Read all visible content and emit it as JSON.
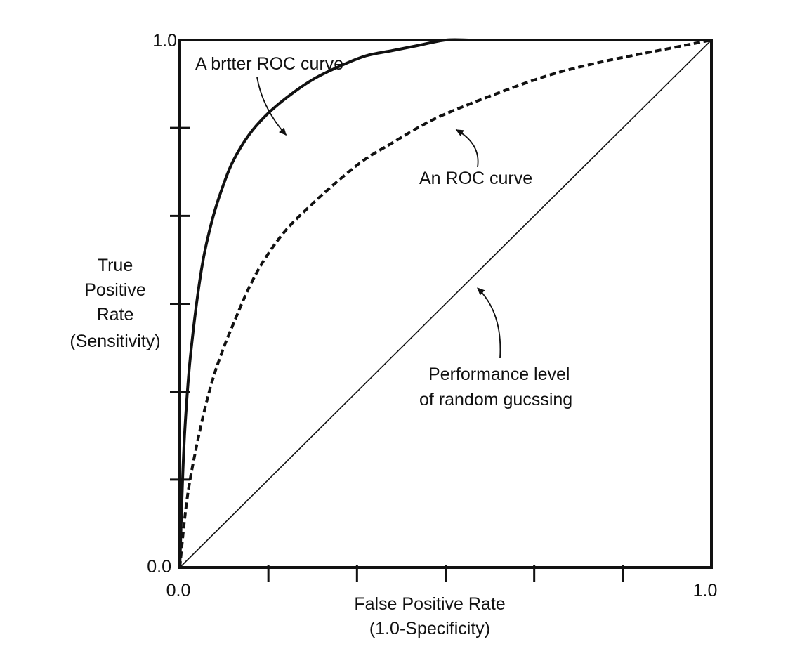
{
  "chart_data": {
    "type": "line",
    "xlabel": [
      "False Positive Rate",
      "(1.0-Specificity)"
    ],
    "ylabel": [
      "True",
      "Positive",
      "Rate",
      "(Sensitivity)"
    ],
    "xlim": [
      0,
      1
    ],
    "ylim": [
      0,
      1
    ],
    "x_tick_labels": [
      "0.0",
      "1.0"
    ],
    "y_tick_labels": [
      "0.0",
      "1.0"
    ],
    "grid": false,
    "series": [
      {
        "id": "better",
        "style": "solid-thick",
        "x": [
          0,
          0.005,
          0.01,
          0.02,
          0.04,
          0.06,
          0.08,
          0.1,
          0.13,
          0.16,
          0.2,
          0.25,
          0.3,
          0.35,
          0.4,
          0.45,
          0.5,
          0.55,
          0.6,
          0.65,
          0.7,
          0.8,
          0.9,
          1.0
        ],
        "y": [
          0,
          0.16,
          0.27,
          0.4,
          0.56,
          0.655,
          0.72,
          0.77,
          0.82,
          0.855,
          0.89,
          0.925,
          0.95,
          0.97,
          0.98,
          0.99,
          1.0,
          1.0,
          1.0,
          1.0,
          1.0,
          1.0,
          1.0,
          1.0
        ]
      },
      {
        "id": "roc",
        "style": "dashed",
        "x": [
          0,
          0.01,
          0.02,
          0.04,
          0.06,
          0.08,
          0.1,
          0.13,
          0.16,
          0.2,
          0.25,
          0.3,
          0.35,
          0.4,
          0.45,
          0.5,
          0.6,
          0.7,
          0.8,
          0.9,
          1.0
        ],
        "y": [
          0,
          0.1,
          0.17,
          0.27,
          0.35,
          0.41,
          0.46,
          0.53,
          0.585,
          0.64,
          0.69,
          0.735,
          0.775,
          0.805,
          0.835,
          0.86,
          0.9,
          0.935,
          0.96,
          0.98,
          1.0
        ]
      },
      {
        "id": "random",
        "style": "solid-thin",
        "x": [
          0,
          1
        ],
        "y": [
          0,
          1
        ]
      }
    ],
    "annotations": [
      {
        "id": "better",
        "text": "A brtter ROC curve",
        "x": 0.03,
        "y": 0.955,
        "arrow_to": [
          0.2,
          0.82
        ]
      },
      {
        "id": "roc",
        "text": "An ROC curve",
        "x": 0.45,
        "y": 0.74,
        "arrow_to": [
          0.52,
          0.83
        ]
      },
      {
        "id": "random",
        "text": [
          "Performance level",
          "of random gucssing"
        ],
        "x": 0.46,
        "y": 0.35,
        "arrow_to": [
          0.56,
          0.53
        ]
      }
    ]
  }
}
